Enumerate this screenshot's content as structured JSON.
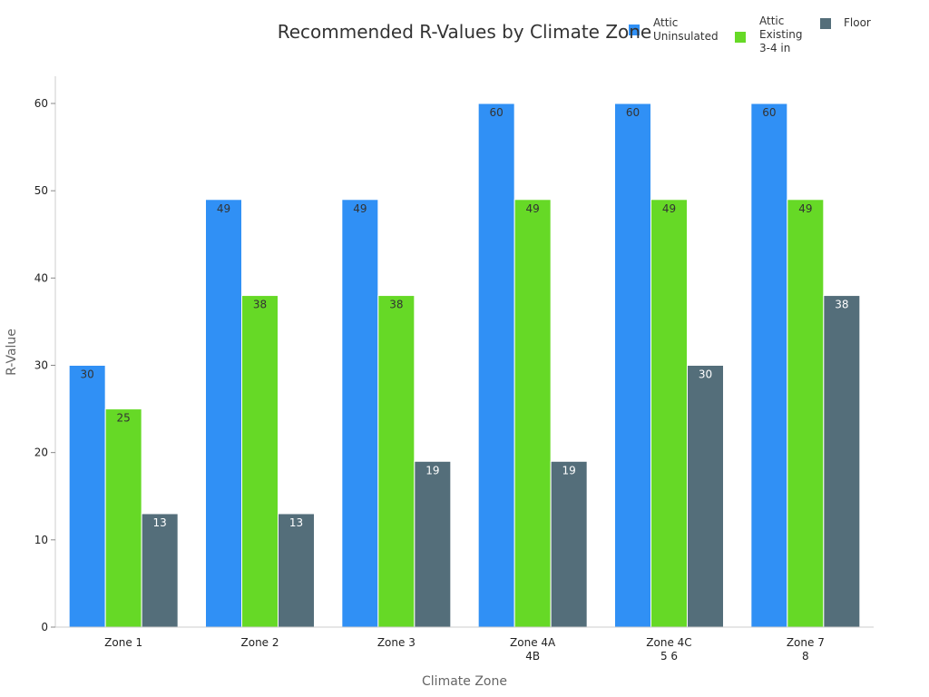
{
  "chart_data": {
    "type": "bar",
    "title": "Recommended R-Values by Climate Zone",
    "xlabel": "Climate Zone",
    "ylabel": "R-Value",
    "categories": [
      [
        "Zone 1"
      ],
      [
        "Zone 2"
      ],
      [
        "Zone 3"
      ],
      [
        "Zone 4A",
        "4B"
      ],
      [
        "Zone 4C",
        "5 6"
      ],
      [
        "Zone 7",
        "8"
      ]
    ],
    "series": [
      {
        "name": [
          "Attic",
          "Uninsulated"
        ],
        "color": "#3090F5",
        "values": [
          30,
          49,
          49,
          60,
          60,
          60
        ]
      },
      {
        "name": [
          "Attic",
          "Existing",
          "3-4 in"
        ],
        "color": "#66D926",
        "values": [
          25,
          38,
          38,
          49,
          49,
          49
        ]
      },
      {
        "name": [
          "Floor"
        ],
        "color": "#546E7A",
        "values": [
          13,
          13,
          19,
          19,
          30,
          38
        ]
      }
    ],
    "ylim": [
      0,
      63
    ],
    "yticks": [
      0,
      10,
      20,
      30,
      40,
      50,
      60
    ],
    "grid": false,
    "legend": "top-right",
    "data_labels": true
  }
}
